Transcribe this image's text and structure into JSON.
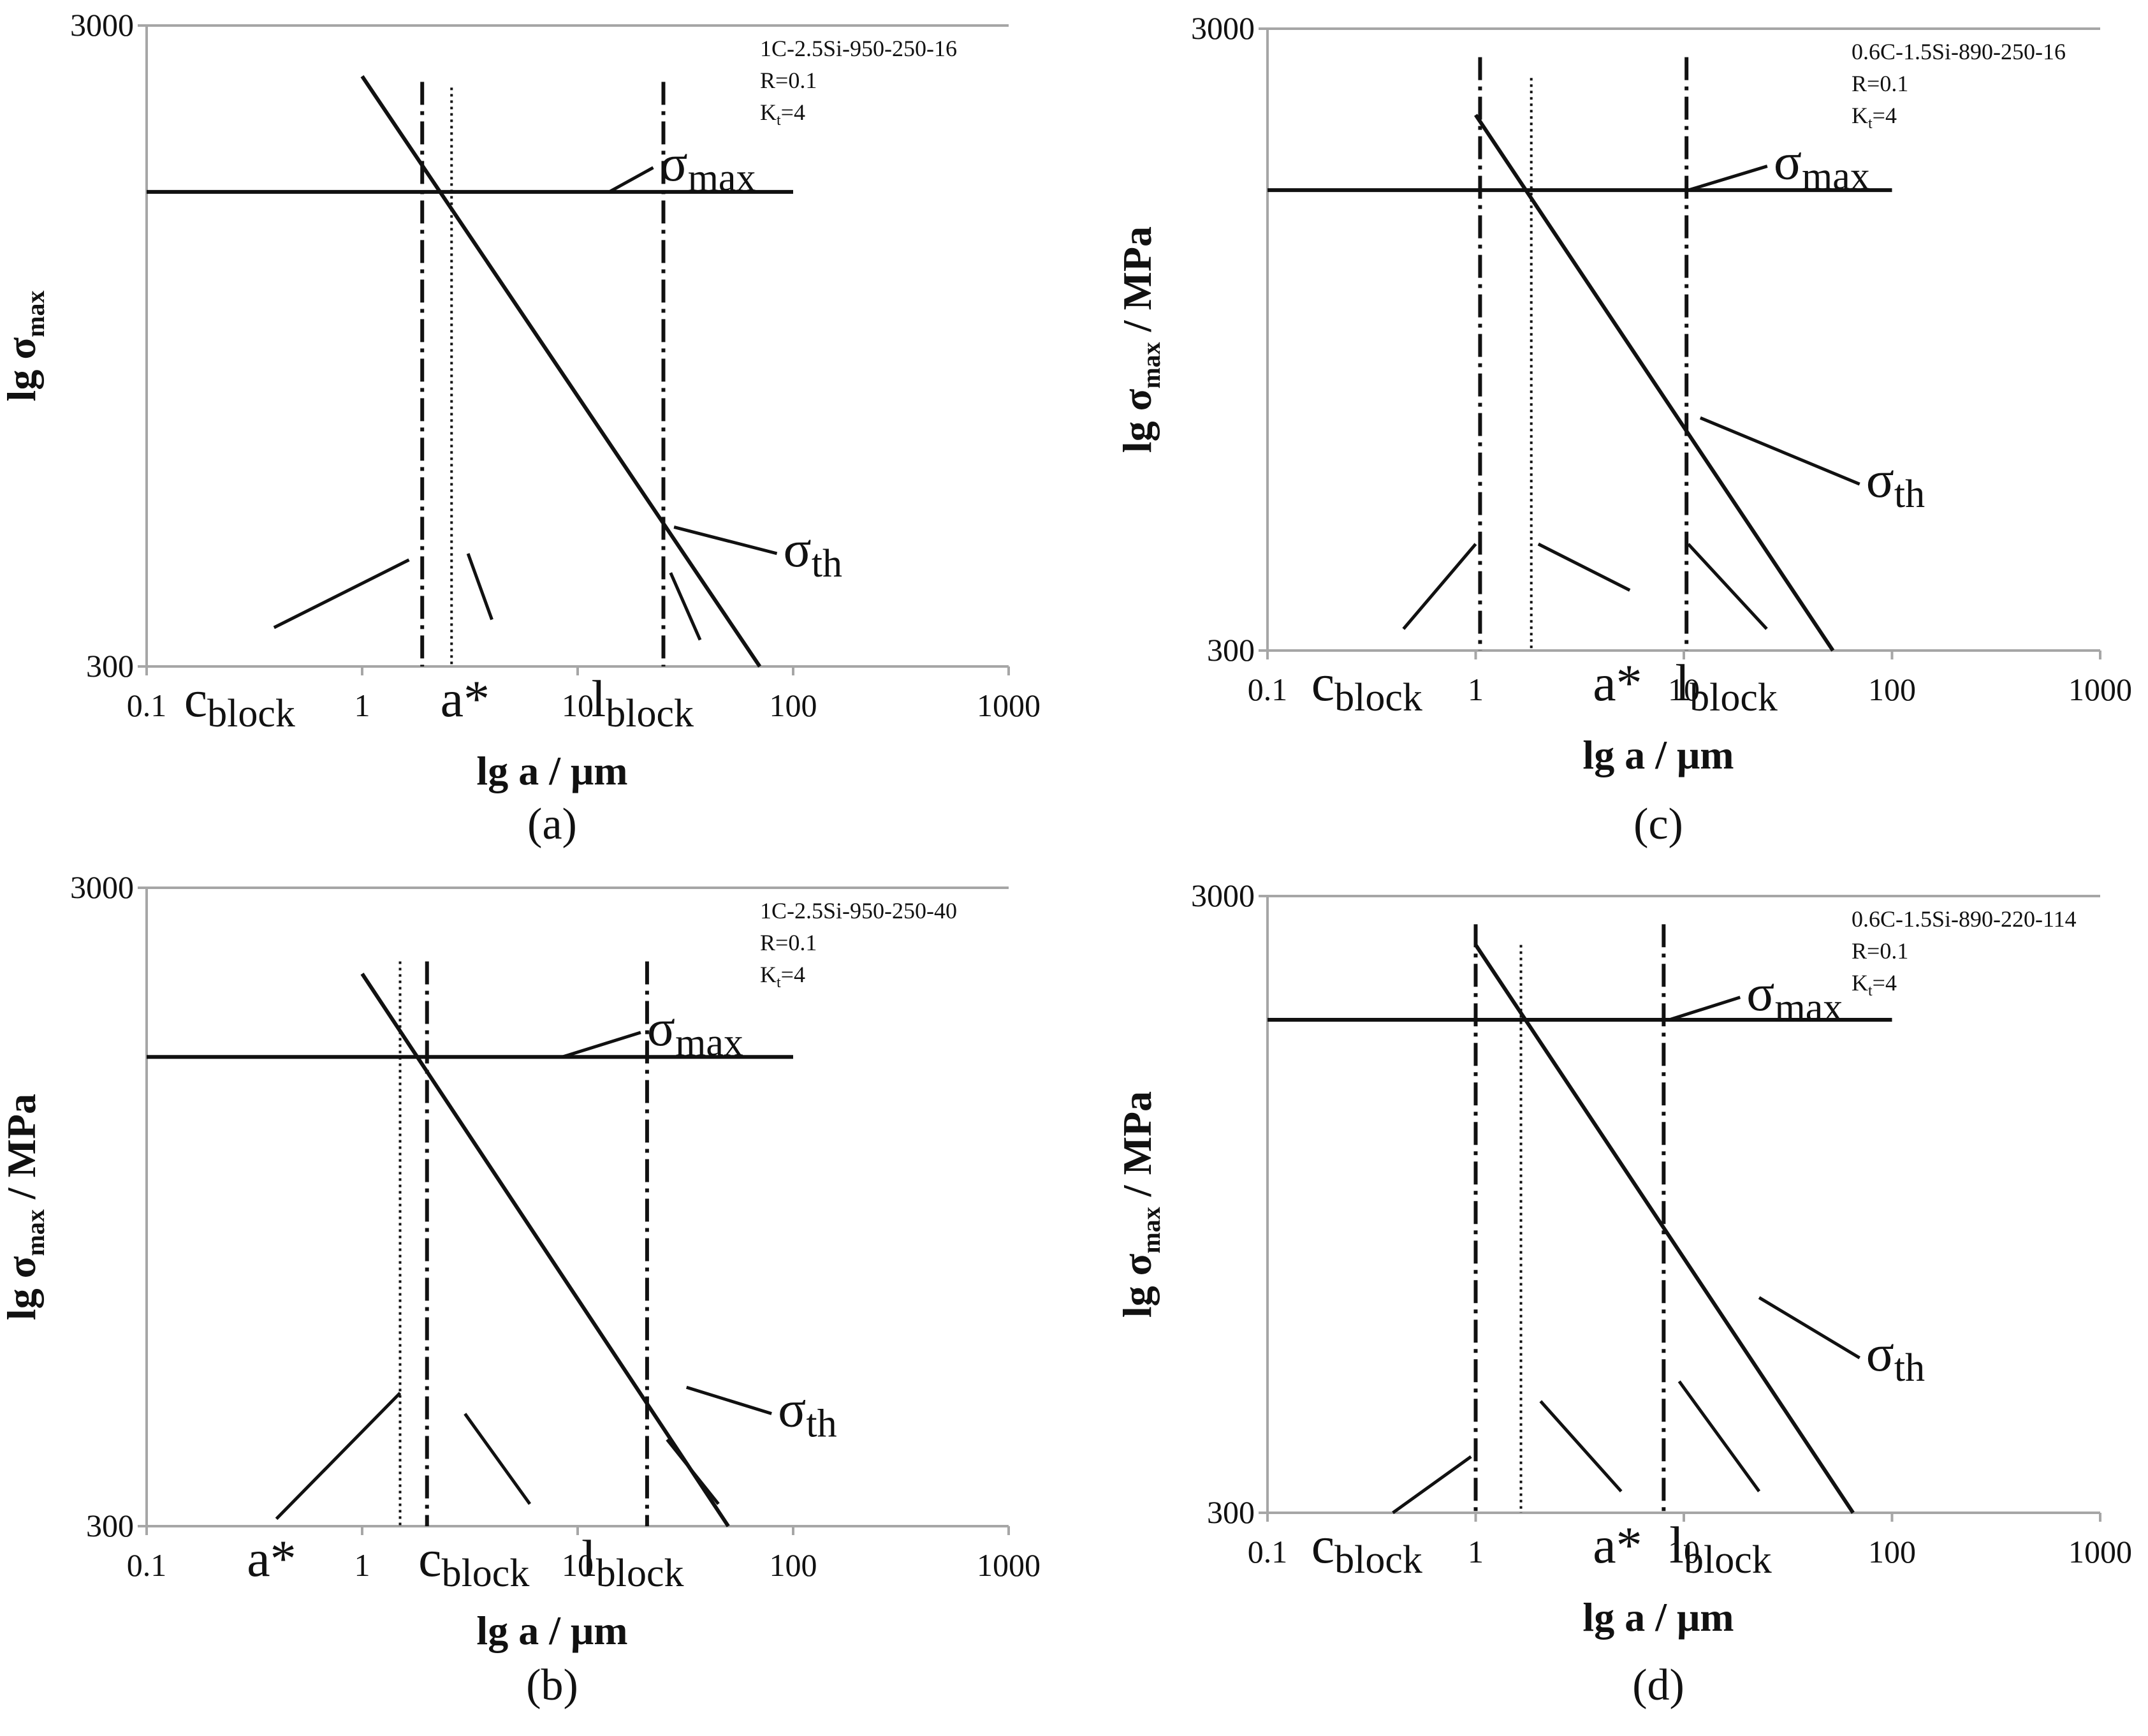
{
  "chart_data": [
    {
      "panel_label": "(a)",
      "type": "line",
      "xscale": "log",
      "yscale": "log",
      "xlim": [
        0.1,
        1000
      ],
      "ylim": [
        300,
        3000
      ],
      "x_ticks": [
        "0.1",
        "1",
        "10",
        "100",
        "1000"
      ],
      "y_ticks": [
        "300",
        "3000"
      ],
      "ylabel": "lg σ",
      "ylabel_sub": "max",
      "ylabel_unit": "",
      "xlabel": "lg a / μm",
      "notes": [
        "1C-2.5Si-950-250-16",
        "R=0.1",
        "K",
        "t",
        "=4"
      ],
      "series": [
        {
          "name": "σmax",
          "label": "σ",
          "label_sub": "max",
          "x": [
            0.1,
            100
          ],
          "y": [
            1650,
            1650
          ],
          "label_at": [
            24,
            1720
          ],
          "leader_to": [
            14,
            1650
          ]
        },
        {
          "name": "σth",
          "label": "σ",
          "label_sub": "th",
          "x": [
            1,
            70
          ],
          "y": [
            2500,
            300
          ],
          "label_at": [
            90,
            430
          ],
          "leader_to": [
            28,
            495
          ]
        }
      ],
      "markers": [
        {
          "name": "cblock",
          "label": "c",
          "label_sub": "block",
          "x": 1.9,
          "style": "dashdot",
          "y_range": [
            300,
            2450
          ],
          "label_at": [
            0.27,
            300
          ],
          "leader_from": [
            0.39,
            345
          ],
          "leader_to": [
            1.65,
            440
          ]
        },
        {
          "name": "a*",
          "label": "a*",
          "x": 2.6,
          "style": "dotted",
          "y_range": [
            300,
            2400
          ],
          "label_at": [
            3.0,
            300
          ],
          "leader_from": [
            4.0,
            355
          ],
          "leader_to": [
            3.1,
            450
          ]
        },
        {
          "name": "lblock",
          "label": "l",
          "label_sub": "block",
          "x": 25,
          "style": "dashdot",
          "y_range": [
            300,
            2450
          ],
          "label_at": [
            20,
            300
          ],
          "leader_from": [
            37,
            330
          ],
          "leader_to": [
            27,
            420
          ]
        }
      ]
    },
    {
      "panel_label": "(b)",
      "type": "line",
      "xscale": "log",
      "yscale": "log",
      "xlim": [
        0.1,
        1000
      ],
      "ylim": [
        300,
        3000
      ],
      "x_ticks": [
        "0.1",
        "1",
        "10",
        "100",
        "1000"
      ],
      "y_ticks": [
        "300",
        "3000"
      ],
      "ylabel": "lg σ",
      "ylabel_sub": "max",
      "ylabel_unit": " / MPa",
      "xlabel": "lg a / μm",
      "notes": [
        "1C-2.5Si-950-250-40",
        "R=0.1",
        "K",
        "t",
        "=4"
      ],
      "series": [
        {
          "name": "σmax",
          "label": "σ",
          "label_sub": "max",
          "x": [
            0.1,
            100
          ],
          "y": [
            1630,
            1630
          ],
          "label_at": [
            21,
            1700
          ],
          "leader_to": [
            8.5,
            1630
          ]
        },
        {
          "name": "σth",
          "label": "σ",
          "label_sub": "th",
          "x": [
            1,
            50
          ],
          "y": [
            2200,
            300
          ],
          "label_at": [
            85,
            430
          ],
          "leader_to": [
            32,
            495
          ]
        }
      ],
      "markers": [
        {
          "name": "a*",
          "label": "a*",
          "x": 1.5,
          "style": "dotted",
          "y_range": [
            300,
            2300
          ],
          "label_at": [
            0.38,
            300
          ],
          "leader_from": [
            0.4,
            308
          ],
          "leader_to": [
            1.5,
            485
          ]
        },
        {
          "name": "cblock",
          "label": "c",
          "label_sub": "block",
          "x": 2.0,
          "style": "dashdot",
          "y_range": [
            300,
            2300
          ],
          "label_at": [
            3.3,
            300
          ],
          "leader_from": [
            6.0,
            325
          ],
          "leader_to": [
            3.0,
            450
          ]
        },
        {
          "name": "lblock",
          "label": "l",
          "label_sub": "block",
          "x": 21,
          "style": "dashdot",
          "y_range": [
            300,
            2300
          ],
          "label_at": [
            18,
            300
          ],
          "leader_from": [
            45,
            325
          ],
          "leader_to": [
            26,
            410
          ]
        }
      ]
    },
    {
      "panel_label": "(c)",
      "type": "line",
      "xscale": "log",
      "yscale": "log",
      "xlim": [
        0.1,
        1000
      ],
      "ylim": [
        300,
        3000
      ],
      "x_ticks": [
        "0.1",
        "1",
        "10",
        "100",
        "1000"
      ],
      "y_ticks": [
        "300",
        "3000"
      ],
      "ylabel": "lg σ",
      "ylabel_sub": "max",
      "ylabel_unit": " / MPa",
      "xlabel": "lg a / μm",
      "notes": [
        "0.6C-1.5Si-890-250-16",
        "R=0.1",
        "K",
        "t",
        "=4"
      ],
      "series": [
        {
          "name": "σmax",
          "label": "σ",
          "label_sub": "max",
          "x": [
            0.1,
            100
          ],
          "y": [
            1650,
            1650
          ],
          "label_at": [
            27,
            1720
          ],
          "leader_to": [
            10.5,
            1650
          ]
        },
        {
          "name": "σth",
          "label": "σ",
          "label_sub": "th",
          "x": [
            1,
            52
          ],
          "y": [
            2180,
            300
          ],
          "label_at": [
            75,
            530
          ],
          "leader_to": [
            12,
            710
          ]
        }
      ],
      "markers": [
        {
          "name": "cblock",
          "label": "c",
          "label_sub": "block",
          "x": 1.05,
          "style": "dashdot",
          "y_range": [
            300,
            2700
          ],
          "label_at": [
            0.3,
            300
          ],
          "leader_from": [
            0.45,
            325
          ],
          "leader_to": [
            1.0,
            445
          ]
        },
        {
          "name": "a*",
          "label": "a*",
          "x": 1.85,
          "style": "dotted",
          "y_range": [
            300,
            2500
          ],
          "label_at": [
            4.8,
            300
          ],
          "leader_from": [
            5.5,
            375
          ],
          "leader_to": [
            2.0,
            445
          ]
        },
        {
          "name": "lblock",
          "label": "l",
          "label_sub": "block",
          "x": 10.3,
          "style": "dashdot",
          "y_range": [
            300,
            2700
          ],
          "label_at": [
            16,
            300
          ],
          "leader_from": [
            25,
            325
          ],
          "leader_to": [
            10.5,
            445
          ]
        }
      ]
    },
    {
      "panel_label": "(d)",
      "type": "line",
      "xscale": "log",
      "yscale": "log",
      "xlim": [
        0.1,
        1000
      ],
      "ylim": [
        300,
        3000
      ],
      "x_ticks": [
        "0.1",
        "1",
        "10",
        "100",
        "1000"
      ],
      "y_ticks": [
        "300",
        "3000"
      ],
      "ylabel": "lg σ",
      "ylabel_sub": "max",
      "ylabel_unit": " / MPa",
      "xlabel": "lg a / μm",
      "notes": [
        "0.6C-1.5Si-890-220-114",
        "R=0.1",
        "K",
        "t",
        "=4"
      ],
      "series": [
        {
          "name": "σmax",
          "label": "σ",
          "label_sub": "max",
          "x": [
            0.1,
            100
          ],
          "y": [
            1890,
            1890
          ],
          "label_at": [
            20,
            1960
          ],
          "leader_to": [
            8.5,
            1890
          ]
        },
        {
          "name": "σth",
          "label": "σ",
          "label_sub": "th",
          "x": [
            1,
            65
          ],
          "y": [
            2500,
            300
          ],
          "label_at": [
            75,
            510
          ],
          "leader_to": [
            23,
            670
          ]
        }
      ],
      "markers": [
        {
          "name": "cblock",
          "label": "c",
          "label_sub": "block",
          "x": 1.0,
          "style": "dashdot",
          "y_range": [
            300,
            2700
          ],
          "label_at": [
            0.3,
            300
          ],
          "leader_from": [
            0.4,
            300
          ],
          "leader_to": [
            0.95,
            370
          ]
        },
        {
          "name": "a*",
          "label": "a*",
          "x": 1.65,
          "style": "dotted",
          "y_range": [
            300,
            2500
          ],
          "label_at": [
            4.8,
            300
          ],
          "leader_from": [
            5.0,
            325
          ],
          "leader_to": [
            2.05,
            455
          ]
        },
        {
          "name": "lblock",
          "label": "l",
          "label_sub": "block",
          "x": 8.0,
          "style": "dashdot",
          "y_range": [
            300,
            2700
          ],
          "label_at": [
            15,
            300
          ],
          "leader_from": [
            23,
            325
          ],
          "leader_to": [
            9.5,
            490
          ]
        }
      ]
    }
  ]
}
